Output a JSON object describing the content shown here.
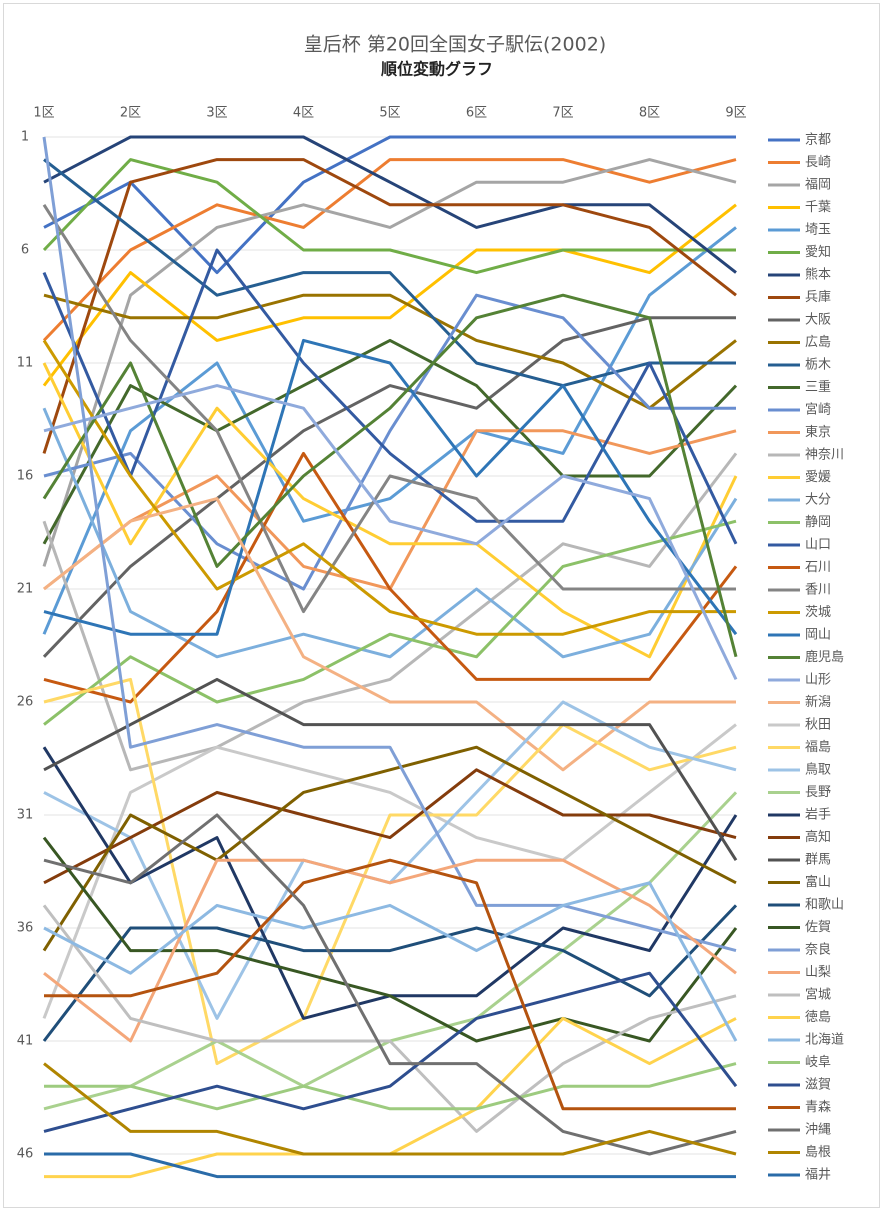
{
  "chart_data": {
    "type": "line",
    "title": "皇后杯 第20回全国女子駅伝(2002)",
    "subtitle": "順位変動グラフ",
    "categories": [
      "1区",
      "2区",
      "3区",
      "4区",
      "5区",
      "6区",
      "7区",
      "8区",
      "9区"
    ],
    "ylim": [
      1,
      47
    ],
    "yticks": [
      1,
      6,
      11,
      16,
      21,
      26,
      31,
      36,
      41,
      46
    ],
    "y_reversed": true,
    "grid": true,
    "legend": "right",
    "series": [
      {
        "name": "京都",
        "color": "#4472C4",
        "values": [
          5,
          3,
          7,
          3,
          1,
          1,
          1,
          1,
          1
        ]
      },
      {
        "name": "長崎",
        "color": "#ED7D31",
        "values": [
          10,
          6,
          4,
          5,
          2,
          2,
          2,
          3,
          2
        ]
      },
      {
        "name": "福岡",
        "color": "#A5A5A5",
        "values": [
          20,
          8,
          5,
          4,
          5,
          3,
          3,
          2,
          3
        ]
      },
      {
        "name": "千葉",
        "color": "#FFC000",
        "values": [
          12,
          7,
          10,
          9,
          9,
          6,
          6,
          7,
          4
        ]
      },
      {
        "name": "埼玉",
        "color": "#5B9BD5",
        "values": [
          23,
          14,
          11,
          18,
          17,
          14,
          15,
          8,
          5
        ]
      },
      {
        "name": "愛知",
        "color": "#70AD47",
        "values": [
          6,
          2,
          3,
          6,
          6,
          7,
          6,
          6,
          6
        ]
      },
      {
        "name": "熊本",
        "color": "#264478",
        "values": [
          3,
          1,
          1,
          1,
          3,
          5,
          4,
          4,
          7
        ]
      },
      {
        "name": "兵庫",
        "color": "#9E480E",
        "values": [
          15,
          3,
          2,
          2,
          4,
          4,
          4,
          5,
          8
        ]
      },
      {
        "name": "大阪",
        "color": "#636363",
        "values": [
          24,
          20,
          17,
          14,
          12,
          13,
          10,
          9,
          9
        ]
      },
      {
        "name": "広島",
        "color": "#997300",
        "values": [
          8,
          9,
          9,
          8,
          8,
          10,
          11,
          13,
          10
        ]
      },
      {
        "name": "栃木",
        "color": "#255E91",
        "values": [
          2,
          5,
          8,
          7,
          7,
          11,
          12,
          11,
          11
        ]
      },
      {
        "name": "三重",
        "color": "#43682B",
        "values": [
          19,
          12,
          14,
          12,
          10,
          12,
          16,
          16,
          12
        ]
      },
      {
        "name": "宮崎",
        "color": "#698ED0",
        "values": [
          16,
          15,
          19,
          21,
          14,
          8,
          9,
          13,
          13
        ]
      },
      {
        "name": "東京",
        "color": "#F1975A",
        "values": [
          21,
          18,
          16,
          20,
          21,
          14,
          14,
          15,
          14
        ]
      },
      {
        "name": "神奈川",
        "color": "#B7B7B7",
        "values": [
          18,
          29,
          28,
          26,
          25,
          22,
          19,
          20,
          15
        ]
      },
      {
        "name": "愛媛",
        "color": "#FFCD33",
        "values": [
          11,
          19,
          13,
          17,
          19,
          19,
          22,
          24,
          16
        ]
      },
      {
        "name": "大分",
        "color": "#7CAFDD",
        "values": [
          13,
          22,
          24,
          23,
          24,
          21,
          24,
          23,
          17
        ]
      },
      {
        "name": "静岡",
        "color": "#8CC168",
        "values": [
          27,
          24,
          26,
          25,
          23,
          24,
          20,
          19,
          18
        ]
      },
      {
        "name": "山口",
        "color": "#335AA1",
        "values": [
          7,
          16,
          6,
          11,
          15,
          18,
          18,
          11,
          19
        ]
      },
      {
        "name": "石川",
        "color": "#C65911",
        "values": [
          25,
          26,
          22,
          15,
          21,
          25,
          25,
          25,
          20
        ]
      },
      {
        "name": "香川",
        "color": "#848484",
        "values": [
          4,
          10,
          14,
          22,
          16,
          17,
          21,
          21,
          21
        ]
      },
      {
        "name": "茨城",
        "color": "#CC9A00",
        "values": [
          10,
          16,
          21,
          19,
          22,
          23,
          23,
          22,
          22
        ]
      },
      {
        "name": "岡山",
        "color": "#2E75B6",
        "values": [
          22,
          23,
          23,
          10,
          11,
          16,
          12,
          18,
          23
        ]
      },
      {
        "name": "鹿児島",
        "color": "#548235",
        "values": [
          17,
          11,
          20,
          16,
          13,
          9,
          8,
          9,
          24
        ]
      },
      {
        "name": "山形",
        "color": "#8FAADC",
        "values": [
          14,
          13,
          12,
          13,
          18,
          19,
          16,
          17,
          25
        ]
      },
      {
        "name": "新潟",
        "color": "#F4B183",
        "values": [
          21,
          18,
          17,
          24,
          26,
          26,
          29,
          26,
          26
        ]
      },
      {
        "name": "秋田",
        "color": "#C9C9C9",
        "values": [
          40,
          30,
          28,
          29,
          30,
          32,
          33,
          30,
          27
        ]
      },
      {
        "name": "福島",
        "color": "#FFD966",
        "values": [
          26,
          25,
          42,
          40,
          31,
          31,
          27,
          29,
          28
        ]
      },
      {
        "name": "鳥取",
        "color": "#9DC3E6",
        "values": [
          30,
          32,
          40,
          33,
          34,
          30,
          26,
          28,
          29
        ]
      },
      {
        "name": "長野",
        "color": "#A9D18E",
        "values": [
          44,
          43,
          41,
          43,
          41,
          40,
          37,
          34,
          30
        ]
      },
      {
        "name": "岩手",
        "color": "#203864",
        "values": [
          28,
          34,
          32,
          40,
          39,
          39,
          36,
          37,
          31
        ]
      },
      {
        "name": "高知",
        "color": "#843C0C",
        "values": [
          34,
          32,
          30,
          31,
          32,
          29,
          31,
          31,
          32
        ]
      },
      {
        "name": "群馬",
        "color": "#525252",
        "values": [
          29,
          27,
          25,
          27,
          27,
          27,
          27,
          27,
          33
        ]
      },
      {
        "name": "富山",
        "color": "#7F6000",
        "values": [
          37,
          31,
          33,
          30,
          29,
          28,
          30,
          32,
          34
        ]
      },
      {
        "name": "和歌山",
        "color": "#1F4E79",
        "values": [
          41,
          36,
          36,
          37,
          37,
          36,
          37,
          39,
          35
        ]
      },
      {
        "name": "佐賀",
        "color": "#385723",
        "values": [
          32,
          37,
          37,
          38,
          39,
          41,
          40,
          41,
          36
        ]
      },
      {
        "name": "奈良",
        "color": "#7F9FD6",
        "values": [
          1,
          28,
          27,
          28,
          28,
          35,
          35,
          36,
          37
        ]
      },
      {
        "name": "山梨",
        "color": "#F4A77A",
        "values": [
          38,
          41,
          33,
          33,
          34,
          33,
          33,
          35,
          38
        ]
      },
      {
        "name": "宮城",
        "color": "#BFBFBF",
        "values": [
          35,
          40,
          41,
          41,
          41,
          45,
          42,
          40,
          39
        ]
      },
      {
        "name": "徳島",
        "color": "#FFD34D",
        "values": [
          47,
          47,
          46,
          46,
          46,
          44,
          40,
          42,
          40
        ]
      },
      {
        "name": "北海道",
        "color": "#8DB9E2",
        "values": [
          36,
          38,
          35,
          36,
          35,
          37,
          35,
          34,
          41
        ]
      },
      {
        "name": "岐阜",
        "color": "#9DCB7F",
        "values": [
          43,
          43,
          44,
          43,
          44,
          44,
          43,
          43,
          42
        ]
      },
      {
        "name": "滋賀",
        "color": "#2E4E8F",
        "values": [
          45,
          44,
          43,
          44,
          43,
          40,
          39,
          38,
          43
        ]
      },
      {
        "name": "青森",
        "color": "#B4530F",
        "values": [
          39,
          39,
          38,
          34,
          33,
          34,
          44,
          44,
          44
        ]
      },
      {
        "name": "沖縄",
        "color": "#707070",
        "values": [
          33,
          34,
          31,
          35,
          42,
          42,
          45,
          46,
          45
        ]
      },
      {
        "name": "島根",
        "color": "#B08500",
        "values": [
          42,
          45,
          45,
          46,
          46,
          46,
          46,
          45,
          46
        ]
      },
      {
        "name": "福井",
        "color": "#2A6BA8",
        "values": [
          46,
          46,
          47,
          47,
          47,
          47,
          47,
          47,
          47
        ]
      }
    ]
  }
}
